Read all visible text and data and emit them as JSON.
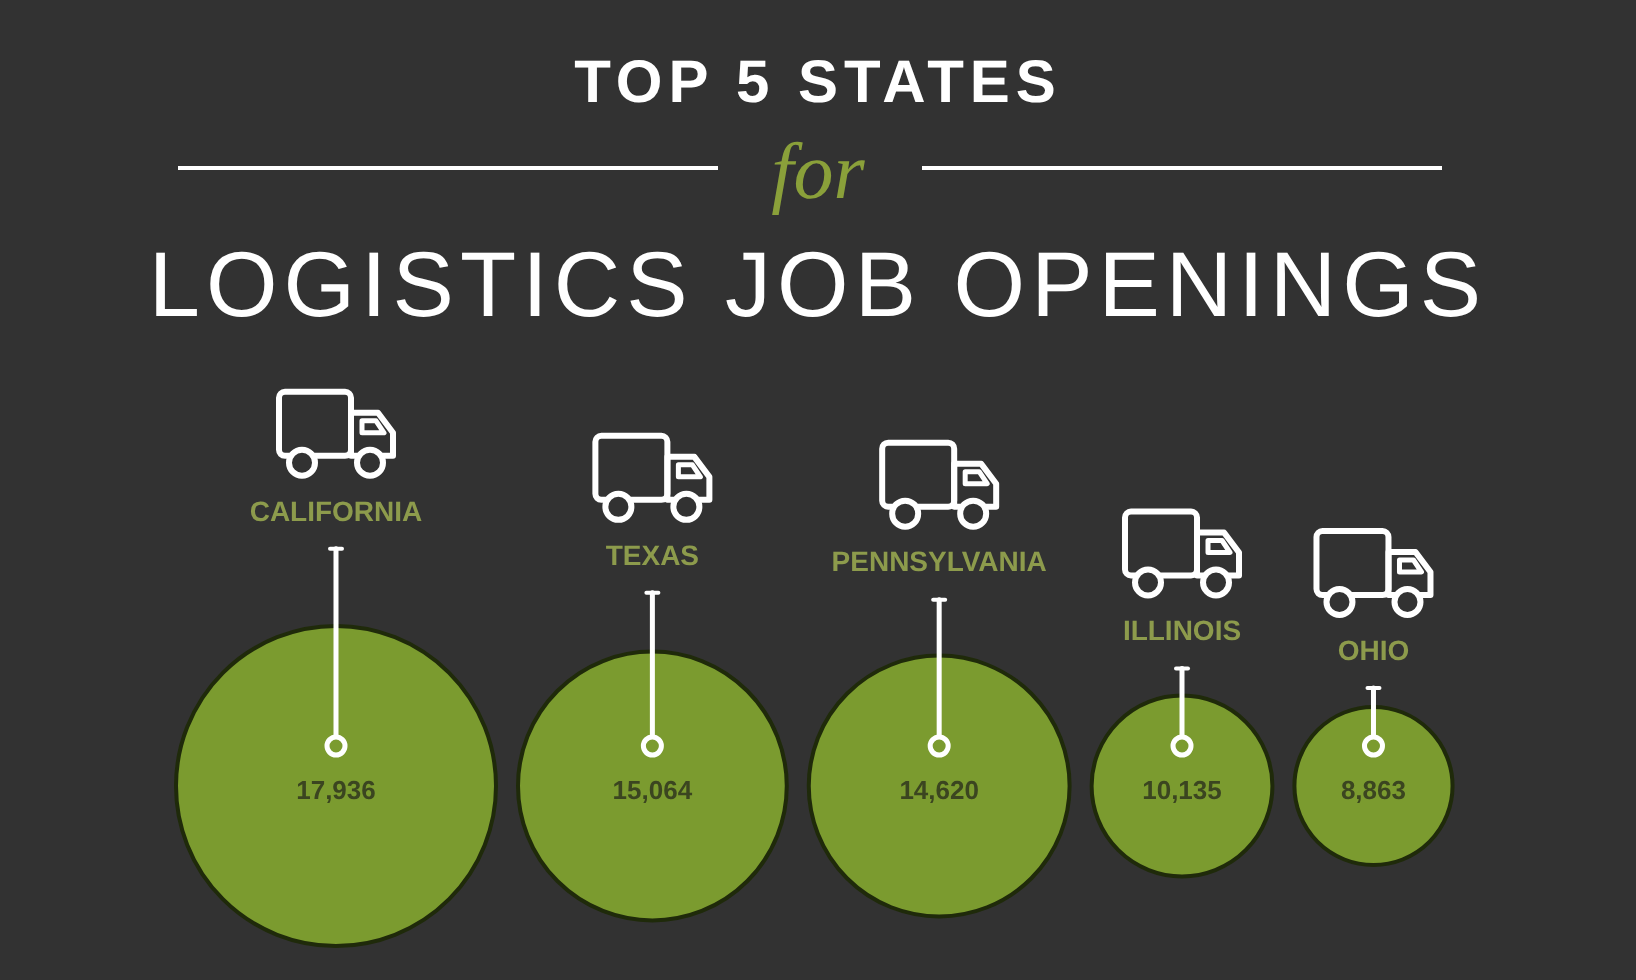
{
  "chart_data": {
    "type": "other",
    "title": "TOP 5 STATES\nfor\nLOGISTICS JOB OPENINGS",
    "categories": [
      "CALIFORNIA",
      "TEXAS",
      "PENNSYLVANIA",
      "ILLINOIS",
      "OHIO"
    ],
    "values": [
      17936,
      15064,
      14620,
      10135,
      8863
    ],
    "value_labels": [
      "17,936",
      "15,064",
      "14,620",
      "10,135",
      "8,863"
    ],
    "color": "#7b9b2f"
  }
}
